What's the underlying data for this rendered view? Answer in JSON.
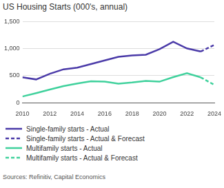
{
  "chart_data": {
    "type": "line",
    "title": "US Housing Starts (000's, annual)",
    "source": "Sources: Refinitiv, Capital Economics",
    "x": [
      2010,
      2011,
      2012,
      2013,
      2014,
      2015,
      2016,
      2017,
      2018,
      2019,
      2020,
      2021,
      2022,
      2023,
      2024
    ],
    "series": [
      {
        "name": "Single-family starts - Actual",
        "color": "#4a3aa8",
        "line_style": "solid",
        "values": [
          471,
          431,
          535,
          618,
          648,
          715,
          782,
          849,
          876,
          888,
          991,
          1127,
          1005,
          947,
          null
        ]
      },
      {
        "name": "Single-family starts - Actual & Forecast",
        "color": "#4a3aa8",
        "line_style": "dashed",
        "values": [
          null,
          null,
          null,
          null,
          null,
          null,
          null,
          null,
          null,
          null,
          null,
          null,
          null,
          947,
          1070
        ]
      },
      {
        "name": "Multifamily starts - Actual",
        "color": "#3fd19c",
        "line_style": "solid",
        "values": [
          116,
          178,
          245,
          307,
          355,
          397,
          392,
          354,
          374,
          403,
          390,
          474,
          547,
          470,
          null
        ]
      },
      {
        "name": "Multifamily starts - Actual & Forecast",
        "color": "#3fd19c",
        "line_style": "dashed",
        "values": [
          null,
          null,
          null,
          null,
          null,
          null,
          null,
          null,
          null,
          null,
          null,
          null,
          null,
          470,
          330
        ]
      }
    ],
    "xlim": [
      2010,
      2024
    ],
    "xticks": [
      2010,
      2012,
      2014,
      2016,
      2018,
      2020,
      2022,
      2024
    ],
    "ylim": [
      0,
      1500
    ],
    "yticks": [
      0,
      {
        "value": 500,
        "label": "500"
      },
      {
        "value": 1000,
        "label": "1,000"
      },
      {
        "value": 1500,
        "label": "1,500"
      }
    ],
    "grid": true,
    "legend": "bottom"
  }
}
